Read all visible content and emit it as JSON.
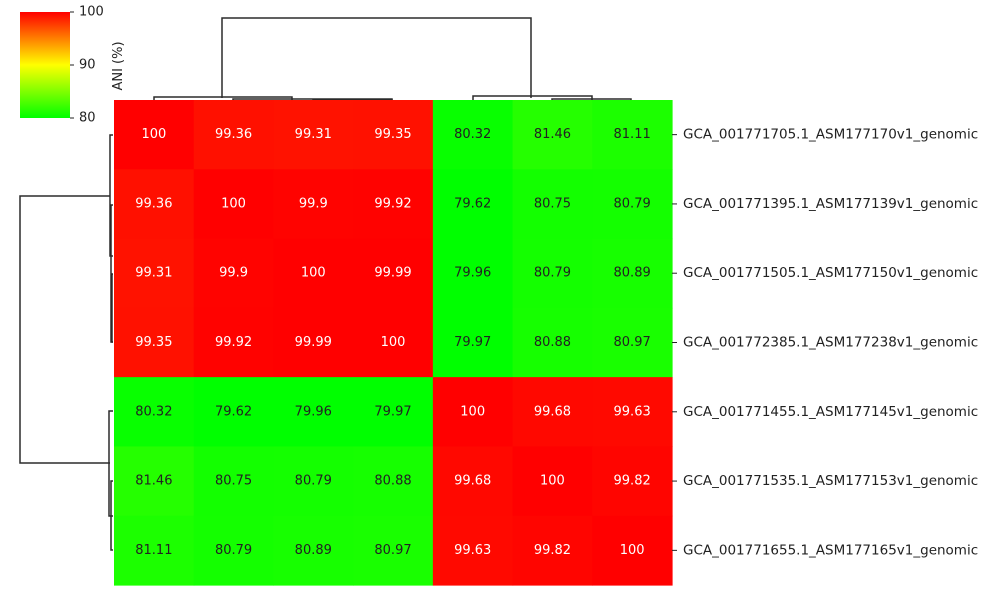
{
  "chart_data": {
    "type": "heatmap",
    "title": "",
    "labels": [
      "GCA_001771705.1_ASM177170v1_genomic",
      "GCA_001771395.1_ASM177139v1_genomic",
      "GCA_001771505.1_ASM177150v1_genomic",
      "GCA_001772385.1_ASM177238v1_genomic",
      "GCA_001771455.1_ASM177145v1_genomic",
      "GCA_001771535.1_ASM177153v1_genomic",
      "GCA_001771655.1_ASM177165v1_genomic"
    ],
    "matrix": [
      [
        100,
        99.36,
        99.31,
        99.35,
        80.32,
        81.46,
        81.11
      ],
      [
        99.36,
        100,
        99.9,
        99.92,
        79.62,
        80.75,
        80.79
      ],
      [
        99.31,
        99.9,
        100,
        99.99,
        79.96,
        80.79,
        80.89
      ],
      [
        99.35,
        99.92,
        99.99,
        100,
        79.97,
        80.88,
        80.97
      ],
      [
        80.32,
        79.62,
        79.96,
        79.97,
        100,
        99.68,
        99.63
      ],
      [
        81.46,
        80.75,
        80.79,
        80.88,
        99.68,
        100,
        99.82
      ],
      [
        81.11,
        80.79,
        80.89,
        80.97,
        99.63,
        99.82,
        100
      ]
    ],
    "colorbar": {
      "label": "ANI (%)",
      "ticks": [
        100,
        90,
        80
      ],
      "range": [
        80,
        100
      ],
      "colors": [
        "#00ff00",
        "#ffff00",
        "#ff0000"
      ]
    },
    "dendrograms": {
      "top": true,
      "left": true
    },
    "cell_text_colors": {
      "high": "#ffffff",
      "low": "#222222"
    }
  }
}
